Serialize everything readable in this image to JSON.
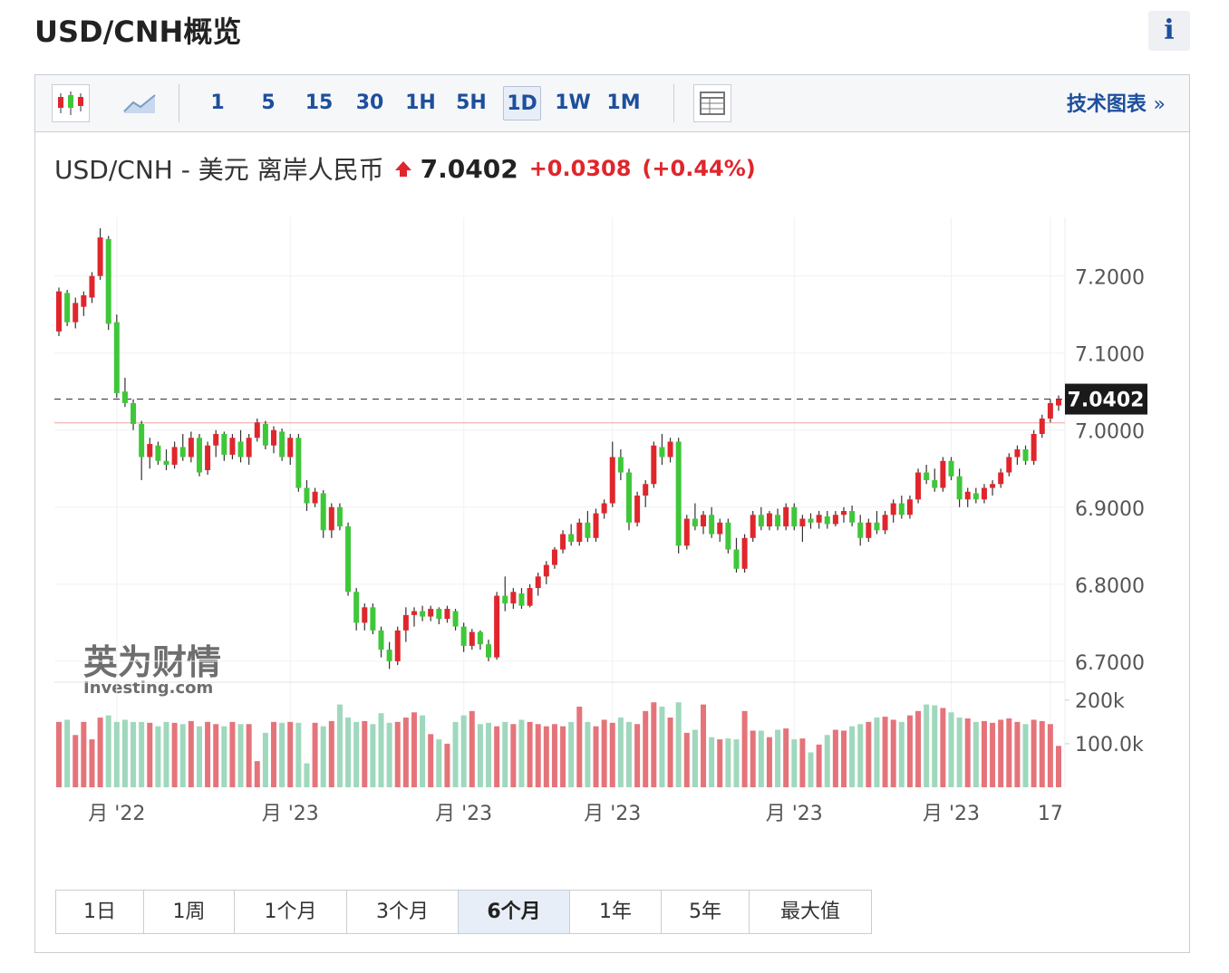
{
  "header": {
    "title": "USD/CNH概览",
    "info": "i"
  },
  "toolbar": {
    "intervals": [
      "1",
      "5",
      "15",
      "30",
      "1H",
      "5H",
      "1D",
      "1W",
      "1M"
    ],
    "active": "1D",
    "link": "技术图表",
    "link_arrow": "»"
  },
  "quote": {
    "symbol": "USD/CNH - 美元 离岸人民币",
    "price": "7.0402",
    "change": "+0.0308",
    "change_pct": "(+0.44%)"
  },
  "watermark": {
    "brand": "英为财情",
    "site": "Investing.com"
  },
  "chart_data": {
    "type": "candlestick",
    "up_color": "#e0262c",
    "down_color": "#3fc73a",
    "volume_up_color": "#e5747a",
    "volume_down_color": "#9fd8bd",
    "ylim": [
      6.674,
      7.276
    ],
    "yticks": [
      {
        "value": 6.7,
        "label": "6.7000"
      },
      {
        "value": 6.8,
        "label": "6.8000"
      },
      {
        "value": 6.9,
        "label": "6.9000"
      },
      {
        "value": 7.0,
        "label": "7.0000"
      },
      {
        "value": 7.1,
        "label": "7.1000"
      },
      {
        "value": 7.2,
        "label": "7.2000"
      }
    ],
    "last_price": 7.0402,
    "prev_close": 7.0094,
    "vlim": [
      0,
      210000
    ],
    "vticks": [
      {
        "value": 100000,
        "label": "100.0k"
      },
      {
        "value": 200000,
        "label": "200k"
      }
    ],
    "categories": [
      null,
      null,
      null,
      null,
      null,
      null,
      null,
      "月 '22",
      null,
      null,
      null,
      null,
      null,
      null,
      null,
      null,
      null,
      null,
      null,
      null,
      null,
      null,
      null,
      null,
      null,
      null,
      null,
      null,
      "月 '23",
      null,
      null,
      null,
      null,
      null,
      null,
      null,
      null,
      null,
      null,
      null,
      null,
      null,
      null,
      null,
      null,
      null,
      null,
      null,
      null,
      "月 '23",
      null,
      null,
      null,
      null,
      null,
      null,
      null,
      null,
      null,
      null,
      null,
      null,
      null,
      null,
      null,
      null,
      null,
      "月 '23",
      null,
      null,
      null,
      null,
      null,
      null,
      null,
      null,
      null,
      null,
      null,
      null,
      null,
      null,
      null,
      null,
      null,
      null,
      null,
      null,
      null,
      "月 '23",
      null,
      null,
      null,
      null,
      null,
      null,
      null,
      null,
      null,
      null,
      null,
      null,
      null,
      null,
      null,
      null,
      null,
      null,
      "月 '23",
      null,
      null,
      null,
      null,
      null,
      null,
      null,
      null,
      null,
      null,
      null,
      "17",
      null
    ],
    "candles": [
      [
        7.128,
        7.185,
        7.122,
        7.18
      ],
      [
        7.178,
        7.182,
        7.135,
        7.14
      ],
      [
        7.14,
        7.172,
        7.132,
        7.165
      ],
      [
        7.16,
        7.18,
        7.148,
        7.175
      ],
      [
        7.172,
        7.205,
        7.165,
        7.2
      ],
      [
        7.2,
        7.262,
        7.195,
        7.25
      ],
      [
        7.248,
        7.252,
        7.13,
        7.138
      ],
      [
        7.14,
        7.15,
        7.042,
        7.048
      ],
      [
        7.05,
        7.068,
        7.03,
        7.035
      ],
      [
        7.035,
        7.04,
        7.0,
        7.008
      ],
      [
        7.008,
        7.012,
        6.935,
        6.965
      ],
      [
        6.965,
        6.99,
        6.95,
        6.982
      ],
      [
        6.98,
        6.985,
        6.955,
        6.96
      ],
      [
        6.96,
        6.975,
        6.948,
        6.955
      ],
      [
        6.955,
        6.985,
        6.95,
        6.978
      ],
      [
        6.978,
        6.995,
        6.96,
        6.965
      ],
      [
        6.965,
        6.998,
        6.958,
        6.99
      ],
      [
        6.99,
        6.995,
        6.94,
        6.945
      ],
      [
        6.948,
        6.985,
        6.942,
        6.98
      ],
      [
        6.98,
        7.0,
        6.965,
        6.995
      ],
      [
        6.995,
        6.998,
        6.96,
        6.968
      ],
      [
        6.968,
        6.995,
        6.962,
        6.99
      ],
      [
        6.985,
        7.0,
        6.958,
        6.965
      ],
      [
        6.965,
        6.995,
        6.955,
        6.99
      ],
      [
        6.99,
        7.015,
        6.985,
        7.01
      ],
      [
        7.008,
        7.012,
        6.975,
        6.98
      ],
      [
        6.98,
        7.005,
        6.97,
        7.0
      ],
      [
        6.998,
        7.002,
        6.96,
        6.965
      ],
      [
        6.965,
        6.995,
        6.955,
        6.99
      ],
      [
        6.99,
        6.995,
        6.92,
        6.925
      ],
      [
        6.925,
        6.935,
        6.895,
        6.905
      ],
      [
        6.905,
        6.925,
        6.9,
        6.92
      ],
      [
        6.918,
        6.922,
        6.86,
        6.87
      ],
      [
        6.87,
        6.905,
        6.86,
        6.9
      ],
      [
        6.9,
        6.905,
        6.87,
        6.875
      ],
      [
        6.875,
        6.88,
        6.785,
        6.79
      ],
      [
        6.79,
        6.795,
        6.74,
        6.75
      ],
      [
        6.75,
        6.775,
        6.74,
        6.77
      ],
      [
        6.77,
        6.775,
        6.735,
        6.74
      ],
      [
        6.74,
        6.745,
        6.705,
        6.715
      ],
      [
        6.715,
        6.725,
        6.69,
        6.7
      ],
      [
        6.7,
        6.745,
        6.695,
        6.74
      ],
      [
        6.74,
        6.77,
        6.725,
        6.76
      ],
      [
        6.76,
        6.77,
        6.745,
        6.765
      ],
      [
        6.765,
        6.772,
        6.752,
        6.758
      ],
      [
        6.758,
        6.772,
        6.752,
        6.768
      ],
      [
        6.768,
        6.77,
        6.748,
        6.755
      ],
      [
        6.755,
        6.772,
        6.75,
        6.768
      ],
      [
        6.765,
        6.768,
        6.74,
        6.745
      ],
      [
        6.745,
        6.75,
        6.712,
        6.72
      ],
      [
        6.72,
        6.742,
        6.715,
        6.738
      ],
      [
        6.738,
        6.74,
        6.715,
        6.722
      ],
      [
        6.722,
        6.728,
        6.7,
        6.705
      ],
      [
        6.705,
        6.79,
        6.702,
        6.785
      ],
      [
        6.785,
        6.81,
        6.765,
        6.775
      ],
      [
        6.775,
        6.795,
        6.768,
        6.79
      ],
      [
        6.788,
        6.795,
        6.768,
        6.772
      ],
      [
        6.772,
        6.8,
        6.77,
        6.795
      ],
      [
        6.795,
        6.815,
        6.785,
        6.81
      ],
      [
        6.81,
        6.83,
        6.8,
        6.825
      ],
      [
        6.825,
        6.848,
        6.82,
        6.845
      ],
      [
        6.845,
        6.87,
        6.84,
        6.865
      ],
      [
        6.865,
        6.878,
        6.85,
        6.855
      ],
      [
        6.855,
        6.885,
        6.85,
        6.88
      ],
      [
        6.88,
        6.895,
        6.855,
        6.86
      ],
      [
        6.86,
        6.898,
        6.855,
        6.892
      ],
      [
        6.892,
        6.91,
        6.885,
        6.905
      ],
      [
        6.905,
        6.985,
        6.9,
        6.965
      ],
      [
        6.965,
        6.975,
        6.935,
        6.945
      ],
      [
        6.945,
        6.95,
        6.87,
        6.88
      ],
      [
        6.88,
        6.92,
        6.875,
        6.915
      ],
      [
        6.915,
        6.935,
        6.9,
        6.93
      ],
      [
        6.93,
        6.985,
        6.925,
        6.98
      ],
      [
        6.978,
        6.995,
        6.955,
        6.965
      ],
      [
        6.965,
        6.99,
        6.958,
        6.985
      ],
      [
        6.985,
        6.99,
        6.84,
        6.85
      ],
      [
        6.85,
        6.89,
        6.845,
        6.885
      ],
      [
        6.885,
        6.905,
        6.87,
        6.875
      ],
      [
        6.875,
        6.895,
        6.865,
        6.89
      ],
      [
        6.89,
        6.9,
        6.86,
        6.865
      ],
      [
        6.865,
        6.885,
        6.855,
        6.88
      ],
      [
        6.88,
        6.885,
        6.84,
        6.845
      ],
      [
        6.845,
        6.86,
        6.815,
        6.82
      ],
      [
        6.82,
        6.865,
        6.815,
        6.86
      ],
      [
        6.86,
        6.895,
        6.855,
        6.89
      ],
      [
        6.89,
        6.9,
        6.87,
        6.875
      ],
      [
        6.875,
        6.895,
        6.87,
        6.892
      ],
      [
        6.89,
        6.898,
        6.87,
        6.875
      ],
      [
        6.875,
        6.905,
        6.87,
        6.9
      ],
      [
        6.9,
        6.905,
        6.87,
        6.875
      ],
      [
        6.875,
        6.89,
        6.855,
        6.885
      ],
      [
        6.885,
        6.892,
        6.872,
        6.88
      ],
      [
        6.88,
        6.895,
        6.872,
        6.89
      ],
      [
        6.888,
        6.895,
        6.872,
        6.878
      ],
      [
        6.878,
        6.895,
        6.875,
        6.89
      ],
      [
        6.89,
        6.9,
        6.88,
        6.895
      ],
      [
        6.895,
        6.902,
        6.875,
        6.88
      ],
      [
        6.88,
        6.89,
        6.85,
        6.86
      ],
      [
        6.86,
        6.885,
        6.855,
        6.88
      ],
      [
        6.88,
        6.895,
        6.865,
        6.87
      ],
      [
        6.87,
        6.895,
        6.865,
        6.89
      ],
      [
        6.89,
        6.91,
        6.88,
        6.905
      ],
      [
        6.905,
        6.915,
        6.885,
        6.89
      ],
      [
        6.89,
        6.915,
        6.885,
        6.91
      ],
      [
        6.91,
        6.95,
        6.905,
        6.945
      ],
      [
        6.945,
        6.955,
        6.93,
        6.935
      ],
      [
        6.935,
        6.95,
        6.92,
        6.925
      ],
      [
        6.925,
        6.965,
        6.92,
        6.96
      ],
      [
        6.96,
        6.965,
        6.935,
        6.94
      ],
      [
        6.94,
        6.95,
        6.9,
        6.91
      ],
      [
        6.91,
        6.925,
        6.9,
        6.92
      ],
      [
        6.918,
        6.925,
        6.905,
        6.91
      ],
      [
        6.91,
        6.93,
        6.905,
        6.925
      ],
      [
        6.925,
        6.935,
        6.915,
        6.93
      ],
      [
        6.93,
        6.95,
        6.925,
        6.945
      ],
      [
        6.945,
        6.97,
        6.94,
        6.965
      ],
      [
        6.965,
        6.98,
        6.955,
        6.975
      ],
      [
        6.975,
        6.98,
        6.955,
        6.96
      ],
      [
        6.96,
        7.0,
        6.955,
        6.995
      ],
      [
        6.995,
        7.02,
        6.99,
        7.015
      ],
      [
        7.015,
        7.04,
        7.01,
        7.035
      ],
      [
        7.032,
        7.045,
        7.025,
        7.0402
      ]
    ],
    "volume": [
      150000,
      155000,
      120000,
      150000,
      110000,
      160000,
      165000,
      150000,
      155000,
      150000,
      150000,
      148000,
      140000,
      150000,
      148000,
      145000,
      152000,
      140000,
      150000,
      145000,
      140000,
      150000,
      145000,
      145000,
      60000,
      125000,
      150000,
      148000,
      150000,
      148000,
      55000,
      148000,
      140000,
      152000,
      190000,
      160000,
      150000,
      152000,
      145000,
      170000,
      148000,
      150000,
      160000,
      172000,
      165000,
      122000,
      110000,
      100000,
      150000,
      165000,
      175000,
      145000,
      148000,
      140000,
      150000,
      145000,
      155000,
      150000,
      145000,
      140000,
      145000,
      140000,
      150000,
      185000,
      150000,
      140000,
      155000,
      148000,
      160000,
      150000,
      145000,
      175000,
      195000,
      185000,
      160000,
      195000,
      125000,
      132000,
      190000,
      115000,
      110000,
      112000,
      110000,
      175000,
      130000,
      130000,
      115000,
      132000,
      135000,
      110000,
      112000,
      80000,
      98000,
      120000,
      132000,
      130000,
      140000,
      145000,
      150000,
      160000,
      162000,
      155000,
      150000,
      165000,
      175000,
      190000,
      188000,
      182000,
      172000,
      160000,
      158000,
      150000,
      152000,
      148000,
      155000,
      158000,
      150000,
      145000,
      155000,
      152000,
      145000,
      95000
    ]
  },
  "ranges": {
    "items": [
      "1日",
      "1周",
      "1个月",
      "3个月",
      "6个月",
      "1年",
      "5年",
      "最大值"
    ],
    "active": "6个月"
  }
}
